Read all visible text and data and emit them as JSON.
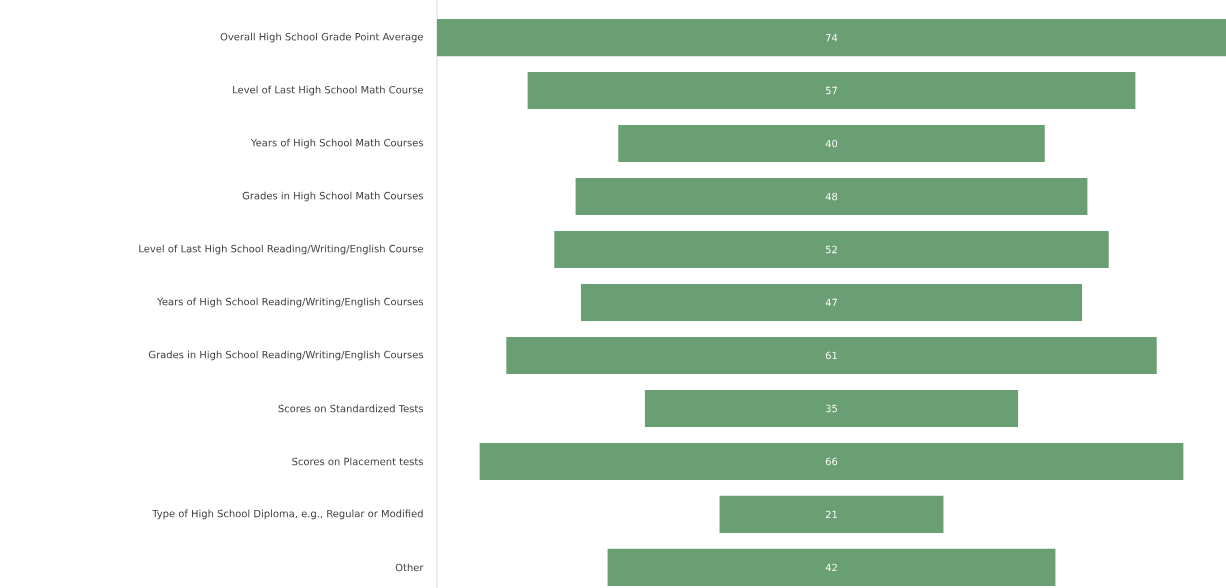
{
  "chart_data": {
    "type": "other",
    "categories": [
      "Overall High School Grade Point Average",
      "Level of Last High School Math Course",
      "Years of High School Math Courses",
      "Grades in High School Math Courses",
      "Level of Last High School Reading/Writing/English Course",
      "Years of High School Reading/Writing/English Courses",
      "Grades in High School Reading/Writing/English Courses",
      "Scores on Standardized Tests",
      "Scores on Placement tests",
      "Type of High School Diploma, e.g., Regular or Modified",
      "Other"
    ],
    "values": [
      74,
      57,
      40,
      48,
      52,
      47,
      61,
      35,
      66,
      21,
      42
    ],
    "color": "#6a9e73",
    "data_labels": true
  }
}
